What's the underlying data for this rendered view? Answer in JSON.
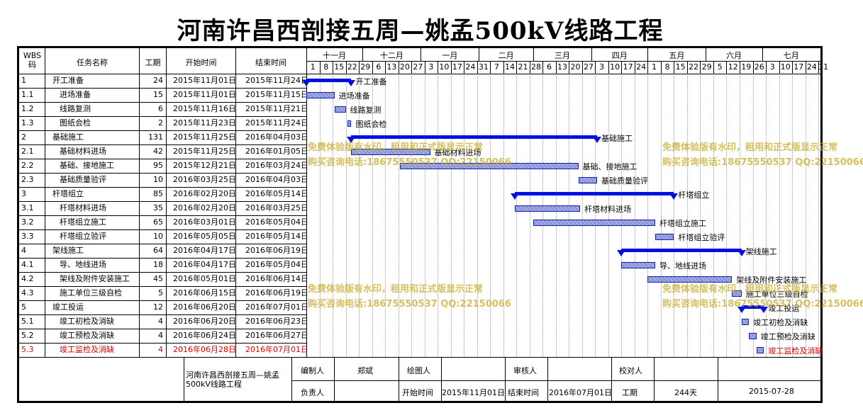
{
  "title": "河南许昌西剖接五周—姚孟500kV线路工程",
  "headers": {
    "wbs": "WBS码",
    "name": "任务名称",
    "duration": "工期",
    "start": "开始时间",
    "end": "结束时间"
  },
  "months": [
    "十一月",
    "十二月",
    "一月",
    "二月",
    "三月",
    "四月",
    "五月",
    "六月",
    "七月"
  ],
  "days": [
    "1",
    "8",
    "15",
    "22",
    "29",
    "6",
    "13",
    "20",
    "27",
    "3",
    "10",
    "17",
    "24",
    "31",
    "7",
    "14",
    "21",
    "28",
    "6",
    "13",
    "20",
    "27",
    "3",
    "10",
    "17",
    "24",
    "1",
    "8",
    "15",
    "22",
    "29",
    "5",
    "12",
    "19",
    "26",
    "3",
    "10",
    "17",
    "24",
    "31"
  ],
  "tasks": [
    {
      "wbs": "1",
      "name": "开工准备",
      "dur": "24",
      "start": "2015年11月01日",
      "end": "2015年11月24日",
      "summary": true,
      "s": 0,
      "e": 24
    },
    {
      "wbs": "1.1",
      "name": "进场准备",
      "dur": "15",
      "start": "2015年11月01日",
      "end": "2015年11月15日",
      "summary": false,
      "s": 0,
      "e": 15
    },
    {
      "wbs": "1.2",
      "name": "线路复测",
      "dur": "6",
      "start": "2015年11月16日",
      "end": "2015年11月21日",
      "summary": false,
      "s": 15,
      "e": 21
    },
    {
      "wbs": "1.3",
      "name": "图纸会检",
      "dur": "2",
      "start": "2015年11月23日",
      "end": "2015年11月24日",
      "summary": false,
      "s": 22,
      "e": 24
    },
    {
      "wbs": "2",
      "name": "基础施工",
      "dur": "131",
      "start": "2015年11月25日",
      "end": "2016年04月03日",
      "summary": true,
      "s": 24,
      "e": 155
    },
    {
      "wbs": "2.1",
      "name": "基础材料进场",
      "dur": "42",
      "start": "2015年11月25日",
      "end": "2016年01月05日",
      "summary": false,
      "s": 24,
      "e": 66
    },
    {
      "wbs": "2.2",
      "name": "基础、接地施工",
      "dur": "95",
      "start": "2015年12月21日",
      "end": "2016年03月24日",
      "summary": false,
      "s": 50,
      "e": 145
    },
    {
      "wbs": "2.3",
      "name": "基础质量验评",
      "dur": "10",
      "start": "2016年03月25日",
      "end": "2016年04月03日",
      "summary": false,
      "s": 145,
      "e": 155
    },
    {
      "wbs": "3",
      "name": "杆塔组立",
      "dur": "85",
      "start": "2016年02月20日",
      "end": "2016年05月14日",
      "summary": true,
      "s": 111,
      "e": 196
    },
    {
      "wbs": "3.1",
      "name": "杆塔材料进场",
      "dur": "35",
      "start": "2016年02月20日",
      "end": "2016年03月25日",
      "summary": false,
      "s": 111,
      "e": 146
    },
    {
      "wbs": "3.2",
      "name": "杆塔组立施工",
      "dur": "65",
      "start": "2016年03月01日",
      "end": "2016年05月04日",
      "summary": false,
      "s": 121,
      "e": 186
    },
    {
      "wbs": "3.3",
      "name": "杆塔组立验评",
      "dur": "10",
      "start": "2016年05月05日",
      "end": "2016年05月14日",
      "summary": false,
      "s": 186,
      "e": 196
    },
    {
      "wbs": "4",
      "name": "架线施工",
      "dur": "64",
      "start": "2016年04月17日",
      "end": "2016年06月19日",
      "summary": true,
      "s": 168,
      "e": 232
    },
    {
      "wbs": "4.1",
      "name": "导、地线进场",
      "dur": "18",
      "start": "2016年04月17日",
      "end": "2016年05月04日",
      "summary": false,
      "s": 168,
      "e": 186
    },
    {
      "wbs": "4.2",
      "name": "架线及附件安装施工",
      "dur": "45",
      "start": "2016年05月01日",
      "end": "2016年06月14日",
      "summary": false,
      "s": 182,
      "e": 227
    },
    {
      "wbs": "4.3",
      "name": "施工单位三级自检",
      "dur": "5",
      "start": "2016年06月15日",
      "end": "2016年06月19日",
      "summary": false,
      "s": 227,
      "e": 232
    },
    {
      "wbs": "5",
      "name": "竣工投运",
      "dur": "12",
      "start": "2016年06月20日",
      "end": "2016年07月01日",
      "summary": true,
      "s": 232,
      "e": 244
    },
    {
      "wbs": "5.1",
      "name": "竣工初检及消缺",
      "dur": "4",
      "start": "2016年06月20日",
      "end": "2016年06月23日",
      "summary": false,
      "s": 232,
      "e": 236
    },
    {
      "wbs": "5.2",
      "name": "竣工预检及消缺",
      "dur": "4",
      "start": "2016年06月24日",
      "end": "2016年06月27日",
      "summary": false,
      "s": 236,
      "e": 240
    },
    {
      "wbs": "5.3",
      "name": "竣工监检及消缺",
      "dur": "4",
      "start": "2016年06月28日",
      "end": "2016年07月01日",
      "summary": false,
      "s": 240,
      "e": 244,
      "red": true
    }
  ],
  "watermark": {
    "line1": "免费体验版有水印，租用和正式版显示正常",
    "line2": "购买咨询电话:18675550537 QQ:22150066"
  },
  "footer": {
    "project": "河南许昌西剖接五周—姚孟500kV线路工程",
    "editor_label": "编制人",
    "editor": "郑斌",
    "drawer_label": "绘图人",
    "drawer": "",
    "reviewer_label": "审核人",
    "reviewer": "",
    "checker_label": "校对人",
    "checker": "",
    "owner_label": "负责人",
    "owner": "",
    "start_label": "开始时间",
    "start": "2015年11月01日",
    "end_label": "结束时间",
    "end": "2016年07月01日",
    "dur_label": "工期",
    "dur": "244天",
    "date": "2015-07-28"
  }
}
